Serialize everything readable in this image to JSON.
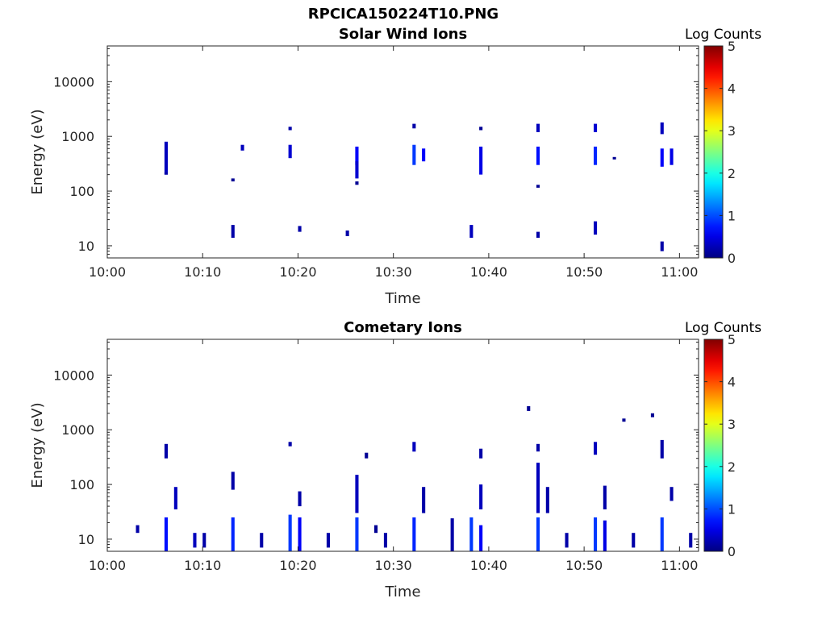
{
  "figure": {
    "title": "RPCICA150224T10.PNG"
  },
  "chart_data": [
    {
      "type": "heatmap",
      "title": "Solar Wind Ions",
      "xlabel": "Time",
      "ylabel": "Energy (eV)",
      "y_scale": "log",
      "ylim": [
        6,
        45000
      ],
      "xlim": [
        "10:00",
        "11:02"
      ],
      "x_ticks": [
        "10:00",
        "10:10",
        "10:20",
        "10:30",
        "10:40",
        "10:50",
        "11:00"
      ],
      "y_ticks": [
        "10",
        "100",
        "1000",
        "10000"
      ],
      "colorbar": {
        "label": "Log Counts",
        "ticks": [
          "0",
          "1",
          "2",
          "3",
          "4",
          "5"
        ],
        "range": [
          0,
          5
        ]
      },
      "cells": [
        [
          "10:06",
          200,
          800,
          0.3
        ],
        [
          "10:06",
          200,
          220,
          0.2
        ],
        [
          "10:13",
          14,
          24,
          0.2
        ],
        [
          "10:13",
          150,
          170,
          0.1
        ],
        [
          "10:14",
          550,
          700,
          0.3
        ],
        [
          "10:19",
          1300,
          1500,
          0.2
        ],
        [
          "10:19",
          400,
          700,
          0.4
        ],
        [
          "10:20",
          18,
          23,
          0.2
        ],
        [
          "10:25",
          15,
          19,
          0.2
        ],
        [
          "10:26",
          300,
          650,
          0.6
        ],
        [
          "10:26",
          170,
          350,
          0.4
        ],
        [
          "10:26",
          130,
          150,
          0.1
        ],
        [
          "10:32",
          1400,
          1700,
          0.2
        ],
        [
          "10:32",
          300,
          700,
          0.9
        ],
        [
          "10:33",
          350,
          600,
          0.6
        ],
        [
          "10:38",
          14,
          24,
          0.3
        ],
        [
          "10:39",
          1300,
          1500,
          0.1
        ],
        [
          "10:39",
          200,
          650,
          0.5
        ],
        [
          "10:45",
          1200,
          1700,
          0.3
        ],
        [
          "10:45",
          300,
          650,
          0.7
        ],
        [
          "10:45",
          14,
          18,
          0.2
        ],
        [
          "10:45",
          115,
          130,
          0.1
        ],
        [
          "10:51",
          1200,
          1700,
          0.4
        ],
        [
          "10:51",
          300,
          650,
          0.8
        ],
        [
          "10:51",
          16,
          28,
          0.3
        ],
        [
          "10:53",
          380,
          420,
          0.1
        ],
        [
          "10:58",
          1100,
          1800,
          0.3
        ],
        [
          "10:58",
          280,
          600,
          0.6
        ],
        [
          "10:58",
          8,
          12,
          0.2
        ],
        [
          "10:59",
          300,
          600,
          0.5
        ]
      ]
    },
    {
      "type": "heatmap",
      "title": "Cometary Ions",
      "xlabel": "Time",
      "ylabel": "Energy (eV)",
      "y_scale": "log",
      "ylim": [
        6,
        45000
      ],
      "xlim": [
        "10:00",
        "11:02"
      ],
      "x_ticks": [
        "10:00",
        "10:10",
        "10:20",
        "10:30",
        "10:40",
        "10:50",
        "11:00"
      ],
      "y_ticks": [
        "10",
        "100",
        "1000",
        "10000"
      ],
      "colorbar": {
        "label": "Log Counts",
        "ticks": [
          "0",
          "1",
          "2",
          "3",
          "4",
          "5"
        ],
        "range": [
          0,
          5
        ]
      },
      "cells": [
        [
          "10:03",
          13,
          18,
          0.2
        ],
        [
          "10:06",
          6,
          25,
          0.7
        ],
        [
          "10:06",
          300,
          550,
          0.2
        ],
        [
          "10:07",
          35,
          90,
          0.3
        ],
        [
          "10:09",
          7,
          13,
          0.3
        ],
        [
          "10:10",
          7,
          13,
          0.2
        ],
        [
          "10:13",
          6,
          25,
          0.8
        ],
        [
          "10:13",
          80,
          170,
          0.2
        ],
        [
          "10:16",
          7,
          13,
          0.2
        ],
        [
          "10:19",
          6,
          28,
          0.9
        ],
        [
          "10:20",
          6,
          25,
          0.6
        ],
        [
          "10:19",
          500,
          600,
          0.2
        ],
        [
          "10:20",
          40,
          75,
          0.2
        ],
        [
          "10:23",
          7,
          13,
          0.2
        ],
        [
          "10:26",
          6,
          25,
          0.9
        ],
        [
          "10:26",
          30,
          150,
          0.3
        ],
        [
          "10:27",
          300,
          380,
          0.1
        ],
        [
          "10:28",
          13,
          18,
          0.1
        ],
        [
          "10:29",
          7,
          13,
          0.2
        ],
        [
          "10:32",
          6,
          25,
          0.8
        ],
        [
          "10:32",
          400,
          600,
          0.3
        ],
        [
          "10:33",
          30,
          90,
          0.2
        ],
        [
          "10:36",
          6,
          24,
          0.2
        ],
        [
          "10:38",
          6,
          25,
          0.9
        ],
        [
          "10:39",
          6,
          18,
          0.6
        ],
        [
          "10:39",
          35,
          100,
          0.3
        ],
        [
          "10:39",
          300,
          450,
          0.2
        ],
        [
          "10:44",
          2200,
          2700,
          0.1
        ],
        [
          "10:45",
          6,
          25,
          0.9
        ],
        [
          "10:45",
          30,
          250,
          0.3
        ],
        [
          "10:45",
          400,
          550,
          0.2
        ],
        [
          "10:46",
          30,
          90,
          0.2
        ],
        [
          "10:48",
          7,
          13,
          0.2
        ],
        [
          "10:51",
          6,
          25,
          0.9
        ],
        [
          "10:52",
          6,
          22,
          0.5
        ],
        [
          "10:51",
          350,
          600,
          0.3
        ],
        [
          "10:52",
          35,
          95,
          0.2
        ],
        [
          "10:54",
          1400,
          1600,
          0.1
        ],
        [
          "10:55",
          7,
          13,
          0.2
        ],
        [
          "10:57",
          1700,
          2000,
          0.1
        ],
        [
          "10:58",
          6,
          25,
          0.9
        ],
        [
          "10:58",
          300,
          650,
          0.2
        ],
        [
          "10:59",
          50,
          90,
          0.2
        ],
        [
          "11:01",
          7,
          13,
          0.2
        ]
      ]
    }
  ]
}
